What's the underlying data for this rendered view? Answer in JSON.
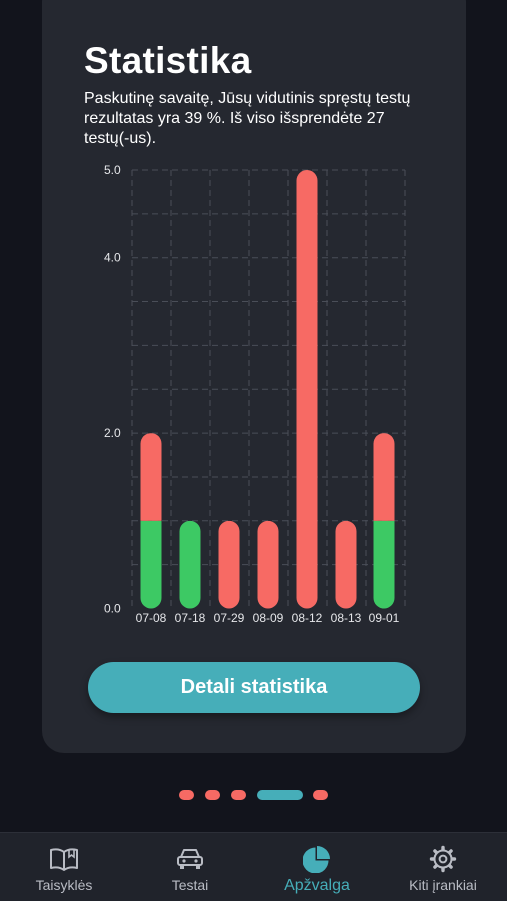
{
  "card": {
    "title": "Statistika",
    "subtitle": "Paskutinę savaitę, Jūsų vidutinis spręstų testų rezultatas yra 39 %. Iš viso išsprendėte 27 testų(-us).",
    "details_button": "Detali statistika"
  },
  "chart_data": {
    "type": "bar",
    "stacked": true,
    "categories": [
      "07-08",
      "07-18",
      "07-29",
      "08-09",
      "08-12",
      "08-13",
      "09-01"
    ],
    "series": [
      {
        "values": [
          1,
          1,
          0,
          0,
          0,
          0,
          1
        ],
        "color": "#3dc964"
      },
      {
        "values": [
          1,
          0,
          1,
          1,
          5,
          1,
          1
        ],
        "color": "#f76a64"
      }
    ],
    "y_ticks": [
      "0.0",
      "2.0",
      "4.0",
      "5.0"
    ],
    "ylim": [
      0,
      5
    ],
    "grid": true
  },
  "pager": {
    "count": 5,
    "active_index": 3
  },
  "tabbar": {
    "items": [
      {
        "label": "Taisyklės",
        "icon": "book-icon"
      },
      {
        "label": "Testai",
        "icon": "car-icon"
      },
      {
        "label": "Apžvalga",
        "icon": "pie-chart-icon",
        "active": true
      },
      {
        "label": "Kiti įrankiai",
        "icon": "gear-icon"
      }
    ]
  },
  "colors": {
    "background": "#12141c",
    "card": "#252830",
    "accent": "#46aeb9",
    "correct": "#3dc964",
    "wrong": "#f76a64"
  }
}
